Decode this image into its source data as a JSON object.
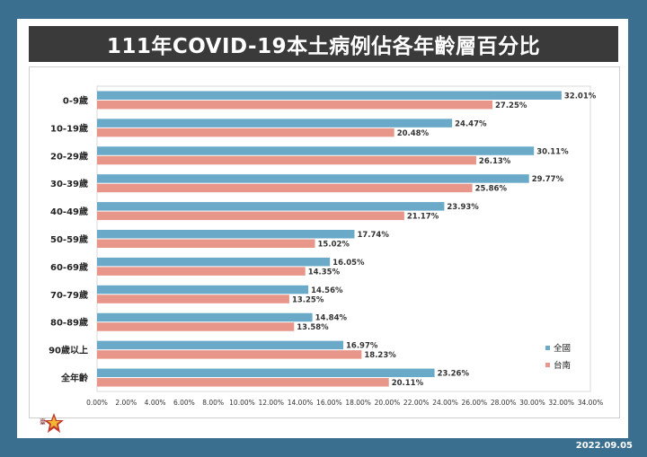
{
  "title": "111年COVID-19本土病例佔各年齡層百分比",
  "date": "2022.09.05",
  "colors": {
    "series1": "#6aa9c8",
    "series2": "#e8968a"
  },
  "chart_data": {
    "type": "bar",
    "orientation": "horizontal",
    "categories": [
      "0-9歲",
      "10-19歲",
      "20-29歲",
      "30-39歲",
      "40-49歲",
      "50-59歲",
      "60-69歲",
      "70-79歲",
      "80-89歲",
      "90歲以上",
      "全年齡"
    ],
    "series": [
      {
        "name": "全國",
        "values": [
          32.01,
          24.47,
          30.11,
          29.77,
          23.93,
          17.74,
          16.05,
          14.56,
          14.84,
          16.97,
          23.26
        ],
        "labels": [
          "32.01%",
          "24.47%",
          "30.11%",
          "29.77%",
          "23.93%",
          "17.74%",
          "16.05%",
          "14.56%",
          "14.84%",
          "16.97%",
          "23.26%"
        ]
      },
      {
        "name": "台南",
        "values": [
          27.25,
          20.48,
          26.13,
          25.86,
          21.17,
          15.02,
          14.35,
          13.25,
          13.58,
          18.23,
          20.11
        ],
        "labels": [
          "27.25%",
          "20.48%",
          "26.13%",
          "25.86%",
          "21.17%",
          "15.02%",
          "14.35%",
          "13.25%",
          "13.58%",
          "18.23%",
          "20.11%"
        ]
      }
    ],
    "xlim": [
      0,
      34
    ],
    "xticks": [
      "0.00%",
      "2.00%",
      "4.00%",
      "6.00%",
      "8.00%",
      "10.00%",
      "12.00%",
      "14.00%",
      "16.00%",
      "18.00%",
      "20.00%",
      "22.00%",
      "24.00%",
      "26.00%",
      "28.00%",
      "30.00%",
      "32.00%",
      "34.00%"
    ],
    "legend_position": "right"
  }
}
